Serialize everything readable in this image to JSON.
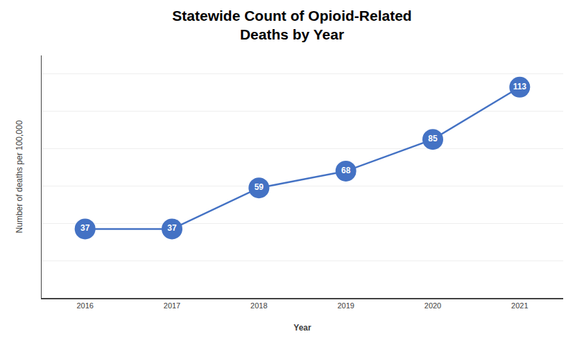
{
  "chart_data": {
    "type": "line",
    "title": "Statewide Count of Opioid-Related\nDeaths by Year",
    "x_label": "Year",
    "y_label": "Number of deaths per 100,000",
    "x": [
      2016,
      2017,
      2018,
      2019,
      2020,
      2021
    ],
    "values": [
      37,
      37,
      59,
      68,
      85,
      113
    ],
    "color": "#4472C4",
    "marker": "circle",
    "data_labels": true,
    "xlim": [
      2015.5,
      2021.5
    ],
    "xticks": [
      2016,
      2017,
      2018,
      2019,
      2020,
      2021
    ],
    "ylim": [
      0,
      130
    ],
    "yticks": [
      20,
      40,
      60,
      80,
      100,
      120
    ],
    "grid": true,
    "tick_labels": "x"
  }
}
